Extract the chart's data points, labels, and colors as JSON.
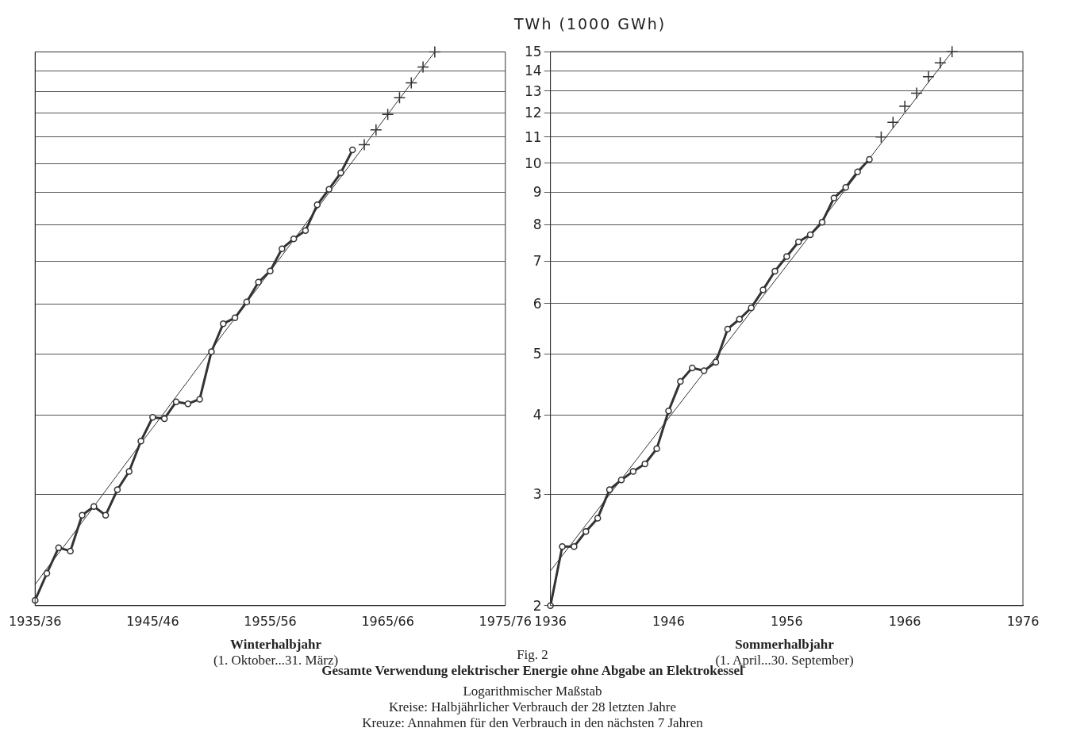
{
  "chart_data": [
    {
      "type": "line",
      "title": "Winterhalbjahr",
      "subtitle": "(1. Oktober...31. März)",
      "categories": [
        "1935/36",
        null,
        null,
        null,
        null,
        null,
        null,
        null,
        null,
        null,
        "1945/46",
        null,
        null,
        null,
        null,
        null,
        null,
        null,
        null,
        null,
        "1955/56",
        null,
        null,
        null,
        null,
        null,
        null,
        null,
        null,
        null,
        "1965/66",
        null,
        null,
        null,
        null,
        null,
        null,
        null,
        null,
        null,
        "1975/76"
      ],
      "ylim": [
        2,
        15
      ],
      "yticks": [
        2,
        3,
        4,
        5,
        6,
        7,
        8,
        9,
        10,
        11,
        12,
        13,
        14,
        15
      ],
      "log": "y",
      "grid": "y",
      "tick_labels": "x",
      "series": [
        {
          "type": "line",
          "color": "#333333",
          "marker": "circle",
          "values": [
            2.04,
            2.25,
            2.47,
            2.44,
            2.78,
            2.87,
            2.78,
            3.05,
            3.26,
            3.64,
            3.97,
            3.95,
            4.2,
            4.17,
            4.24,
            5.04,
            5.58,
            5.7,
            6.04,
            6.49,
            6.76,
            7.33,
            7.6,
            7.83,
            8.6,
            9.1,
            9.66,
            10.5,
            null,
            null,
            null,
            null,
            null,
            null,
            null,
            null,
            null,
            null,
            null,
            null,
            null
          ]
        },
        {
          "type": "scatter",
          "color": "#333333",
          "marker": "cross",
          "values": [
            null,
            null,
            null,
            null,
            null,
            null,
            null,
            null,
            null,
            null,
            null,
            null,
            null,
            null,
            null,
            null,
            null,
            null,
            null,
            null,
            null,
            null,
            null,
            null,
            null,
            null,
            null,
            null,
            10.7,
            11.3,
            11.95,
            12.7,
            13.4,
            14.2,
            15.0,
            null,
            null,
            null,
            null,
            null,
            null
          ]
        },
        {
          "type": "line",
          "color": "#333333",
          "marker": "none",
          "values": [
            2.16,
            2.29,
            2.42,
            2.56,
            2.71,
            2.87,
            3.04,
            3.22,
            3.41,
            3.61,
            3.82,
            4.04,
            4.28,
            4.53,
            4.8,
            5.08,
            5.38,
            5.69,
            6.03,
            6.38,
            6.76,
            7.15,
            7.57,
            8.02,
            8.49,
            8.99,
            9.51,
            10.07,
            10.66,
            11.29,
            11.95,
            12.65,
            13.39,
            14.18,
            15.0,
            null,
            null,
            null,
            null,
            null,
            null
          ]
        }
      ],
      "annotations": [
        "Fig. 2",
        "Gesamte Verwendung elektrischer Energie ohne Abgabe an Elektrokessel",
        "Logarithmischer Maßstab",
        "Kreise:  Halbjährlicher Verbrauch der 28 letzten Jahre",
        "Kreuze:  Annahmen für den Verbrauch in den nächsten 7 Jahren"
      ]
    },
    {
      "type": "line",
      "title": "Sommerhalbjahr",
      "subtitle": "(1. April...30. September)",
      "ylabel": "TWh (1000 GWh)",
      "xlim": [
        1936,
        1976
      ],
      "xticks": [
        1936,
        1946,
        1956,
        1966,
        1976
      ],
      "ylim": [
        2,
        15
      ],
      "yticks": [
        2,
        3,
        4,
        5,
        6,
        7,
        8,
        9,
        10,
        11,
        12,
        13,
        14,
        15
      ],
      "log": "y",
      "grid": "y",
      "x": [
        1936,
        1937,
        1938,
        1939,
        1940,
        1941,
        1942,
        1943,
        1944,
        1945,
        1946,
        1947,
        1948,
        1949,
        1950,
        1951,
        1952,
        1953,
        1954,
        1955,
        1956,
        1957,
        1958,
        1959,
        1960,
        1961,
        1962,
        1963
      ],
      "series": [
        {
          "type": "line",
          "color": "#333333",
          "marker": "circle",
          "values": [
            2.0,
            2.48,
            2.48,
            2.62,
            2.75,
            3.05,
            3.16,
            3.26,
            3.35,
            3.54,
            4.06,
            4.52,
            4.75,
            4.7,
            4.85,
            5.47,
            5.67,
            5.91,
            6.31,
            6.75,
            7.12,
            7.51,
            7.71,
            8.07,
            8.81,
            9.16,
            9.69,
            10.14
          ]
        },
        {
          "type": "scatter",
          "color": "#333333",
          "marker": "cross",
          "x": [
            1964,
            1965,
            1966,
            1967,
            1968,
            1969,
            1970
          ],
          "values": [
            11.0,
            11.6,
            12.3,
            12.9,
            13.7,
            14.4,
            15.0
          ]
        },
        {
          "type": "line",
          "color": "#333333",
          "marker": "none",
          "x": [
            1936,
            1970
          ],
          "values": [
            2.27,
            15.0
          ]
        }
      ]
    }
  ]
}
